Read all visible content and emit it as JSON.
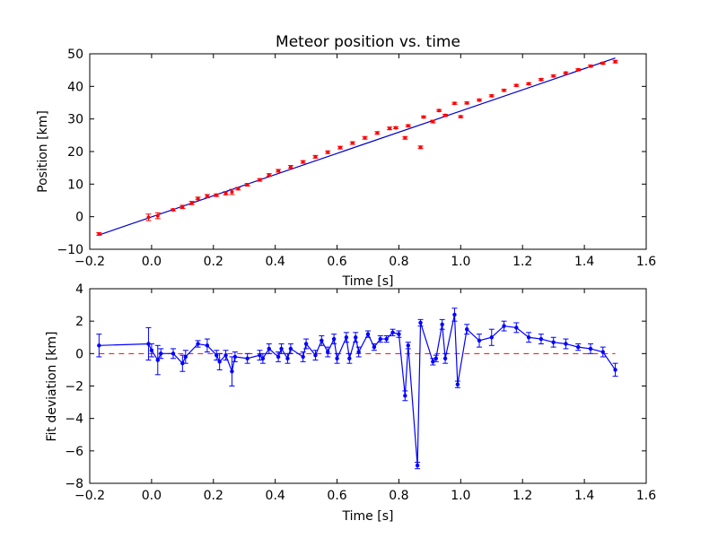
{
  "chart_data": [
    {
      "type": "scatter",
      "title": "Meteor position vs. time",
      "xlabel": "Time [s]",
      "ylabel": "Position [km]",
      "xlim": [
        -0.2,
        1.6
      ],
      "ylim": [
        -10,
        50
      ],
      "xticks": [
        "−0.2",
        "0.0",
        "0.2",
        "0.4",
        "0.6",
        "0.8",
        "1.0",
        "1.2",
        "1.4",
        "1.6"
      ],
      "yticks": [
        "−10",
        "0",
        "10",
        "20",
        "30",
        "40",
        "50"
      ],
      "xtick_values": [
        -0.2,
        0,
        0.2,
        0.4,
        0.6,
        0.8,
        1.0,
        1.2,
        1.4,
        1.6
      ],
      "ytick_values": [
        -10,
        0,
        10,
        20,
        30,
        40,
        50
      ],
      "grid": false,
      "colors": {
        "points": "#ff0000",
        "fit": "#0000cc"
      },
      "series": [
        {
          "kind": "points_with_errorbars",
          "points": [
            [
              -0.17,
              -5.3,
              0.4
            ],
            [
              -0.01,
              -0.2,
              1.0
            ],
            [
              0.02,
              0.3,
              0.9
            ],
            [
              0.07,
              2.1,
              0.3
            ],
            [
              0.1,
              3.0,
              0.5
            ],
            [
              0.13,
              4.2,
              0.5
            ],
            [
              0.15,
              5.6,
              0.4
            ],
            [
              0.18,
              6.3,
              0.5
            ],
            [
              0.21,
              6.6,
              0.4
            ],
            [
              0.24,
              7.2,
              0.5
            ],
            [
              0.26,
              7.6,
              0.8
            ],
            [
              0.28,
              8.6,
              0.4
            ],
            [
              0.31,
              9.8,
              0.4
            ],
            [
              0.35,
              11.3,
              0.4
            ],
            [
              0.38,
              12.8,
              0.4
            ],
            [
              0.41,
              14.1,
              0.4
            ],
            [
              0.45,
              15.3,
              0.4
            ],
            [
              0.49,
              16.8,
              0.4
            ],
            [
              0.53,
              18.4,
              0.4
            ],
            [
              0.57,
              19.8,
              0.4
            ],
            [
              0.61,
              21.2,
              0.4
            ],
            [
              0.65,
              22.6,
              0.4
            ],
            [
              0.69,
              24.2,
              0.4
            ],
            [
              0.73,
              25.7,
              0.4
            ],
            [
              0.77,
              27.1,
              0.4
            ],
            [
              0.79,
              27.3,
              0.3
            ],
            [
              0.82,
              24.2,
              0.4
            ],
            [
              0.83,
              27.9,
              0.3
            ],
            [
              0.87,
              21.3,
              0.4
            ],
            [
              0.88,
              30.6,
              0.3
            ],
            [
              0.91,
              29.2,
              0.4
            ],
            [
              0.93,
              32.6,
              0.3
            ],
            [
              0.95,
              31.1,
              0.3
            ],
            [
              0.98,
              34.8,
              0.3
            ],
            [
              1.0,
              30.7,
              0.3
            ],
            [
              1.02,
              34.9,
              0.3
            ],
            [
              1.06,
              35.8,
              0.3
            ],
            [
              1.1,
              37.1,
              0.3
            ],
            [
              1.14,
              38.8,
              0.3
            ],
            [
              1.18,
              40.3,
              0.3
            ],
            [
              1.22,
              40.8,
              0.3
            ],
            [
              1.26,
              42.1,
              0.3
            ],
            [
              1.3,
              43.2,
              0.3
            ],
            [
              1.34,
              44.1,
              0.3
            ],
            [
              1.38,
              45.1,
              0.3
            ],
            [
              1.42,
              46.2,
              0.3
            ],
            [
              1.46,
              47.1,
              0.3
            ],
            [
              1.5,
              47.6,
              0.4
            ]
          ]
        },
        {
          "kind": "line",
          "x": [
            -0.17,
            1.5
          ],
          "y": [
            -5.6,
            48.7
          ]
        }
      ]
    },
    {
      "type": "line",
      "xlabel": "Time [s]",
      "ylabel": "Fit deviation [km]",
      "xlim": [
        -0.2,
        1.6
      ],
      "ylim": [
        -8,
        4
      ],
      "xticks": [
        "−0.2",
        "0.0",
        "0.2",
        "0.4",
        "0.6",
        "0.8",
        "1.0",
        "1.2",
        "1.4",
        "1.6"
      ],
      "yticks": [
        "−8",
        "−6",
        "−4",
        "−2",
        "0",
        "2",
        "4"
      ],
      "xtick_values": [
        -0.2,
        0,
        0.2,
        0.4,
        0.6,
        0.8,
        1.0,
        1.2,
        1.4,
        1.6
      ],
      "ytick_values": [
        -8,
        -6,
        -4,
        -2,
        0,
        2,
        4
      ],
      "grid": false,
      "colors": {
        "deviation": "#0000ff",
        "zero": "#ff0000"
      },
      "series": [
        {
          "kind": "line_with_errorbars",
          "points": [
            [
              -0.17,
              0.5,
              0.7
            ],
            [
              -0.01,
              0.6,
              1.0
            ],
            [
              0.0,
              0.2,
              0.4
            ],
            [
              0.02,
              -0.4,
              0.9
            ],
            [
              0.03,
              0.0,
              0.3
            ],
            [
              0.07,
              0.0,
              0.3
            ],
            [
              0.1,
              -0.6,
              0.5
            ],
            [
              0.11,
              -0.2,
              0.4
            ],
            [
              0.15,
              0.6,
              0.2
            ],
            [
              0.18,
              0.5,
              0.4
            ],
            [
              0.21,
              -0.1,
              0.3
            ],
            [
              0.22,
              -0.5,
              0.5
            ],
            [
              0.24,
              -0.1,
              0.3
            ],
            [
              0.26,
              -1.1,
              0.9
            ],
            [
              0.27,
              -0.2,
              0.3
            ],
            [
              0.31,
              -0.3,
              0.3
            ],
            [
              0.35,
              -0.1,
              0.3
            ],
            [
              0.36,
              -0.3,
              0.3
            ],
            [
              0.38,
              0.3,
              0.3
            ],
            [
              0.41,
              -0.2,
              0.3
            ],
            [
              0.42,
              0.3,
              0.3
            ],
            [
              0.44,
              -0.3,
              0.3
            ],
            [
              0.45,
              0.3,
              0.3
            ],
            [
              0.49,
              -0.2,
              0.3
            ],
            [
              0.5,
              0.6,
              0.3
            ],
            [
              0.53,
              -0.1,
              0.3
            ],
            [
              0.55,
              0.8,
              0.3
            ],
            [
              0.57,
              0.1,
              0.3
            ],
            [
              0.59,
              0.9,
              0.3
            ],
            [
              0.6,
              -0.3,
              0.3
            ],
            [
              0.63,
              1.0,
              0.3
            ],
            [
              0.64,
              -0.3,
              0.3
            ],
            [
              0.66,
              1.0,
              0.3
            ],
            [
              0.67,
              0.1,
              0.3
            ],
            [
              0.7,
              1.2,
              0.2
            ],
            [
              0.72,
              0.4,
              0.2
            ],
            [
              0.74,
              0.9,
              0.2
            ],
            [
              0.76,
              0.9,
              0.2
            ],
            [
              0.78,
              1.3,
              0.2
            ],
            [
              0.8,
              1.2,
              0.2
            ],
            [
              0.82,
              -2.6,
              0.3
            ],
            [
              0.83,
              0.5,
              0.2
            ],
            [
              0.86,
              -6.9,
              0.2
            ],
            [
              0.87,
              1.9,
              0.2
            ],
            [
              0.91,
              -0.5,
              0.2
            ],
            [
              0.92,
              -0.3,
              0.2
            ],
            [
              0.94,
              1.8,
              0.3
            ],
            [
              0.95,
              -0.3,
              0.3
            ],
            [
              0.98,
              2.4,
              0.4
            ],
            [
              0.99,
              -1.9,
              0.2
            ],
            [
              1.02,
              1.5,
              0.3
            ],
            [
              1.06,
              0.8,
              0.4
            ],
            [
              1.1,
              1.0,
              0.5
            ],
            [
              1.14,
              1.7,
              0.3
            ],
            [
              1.18,
              1.6,
              0.3
            ],
            [
              1.22,
              1.0,
              0.3
            ],
            [
              1.26,
              0.9,
              0.3
            ],
            [
              1.3,
              0.7,
              0.3
            ],
            [
              1.34,
              0.6,
              0.3
            ],
            [
              1.38,
              0.4,
              0.2
            ],
            [
              1.42,
              0.3,
              0.3
            ],
            [
              1.46,
              0.1,
              0.3
            ],
            [
              1.5,
              -1.0,
              0.4
            ]
          ]
        },
        {
          "kind": "dashed_line",
          "x": [
            -0.17,
            1.5
          ],
          "y": [
            0,
            0
          ]
        }
      ]
    }
  ]
}
